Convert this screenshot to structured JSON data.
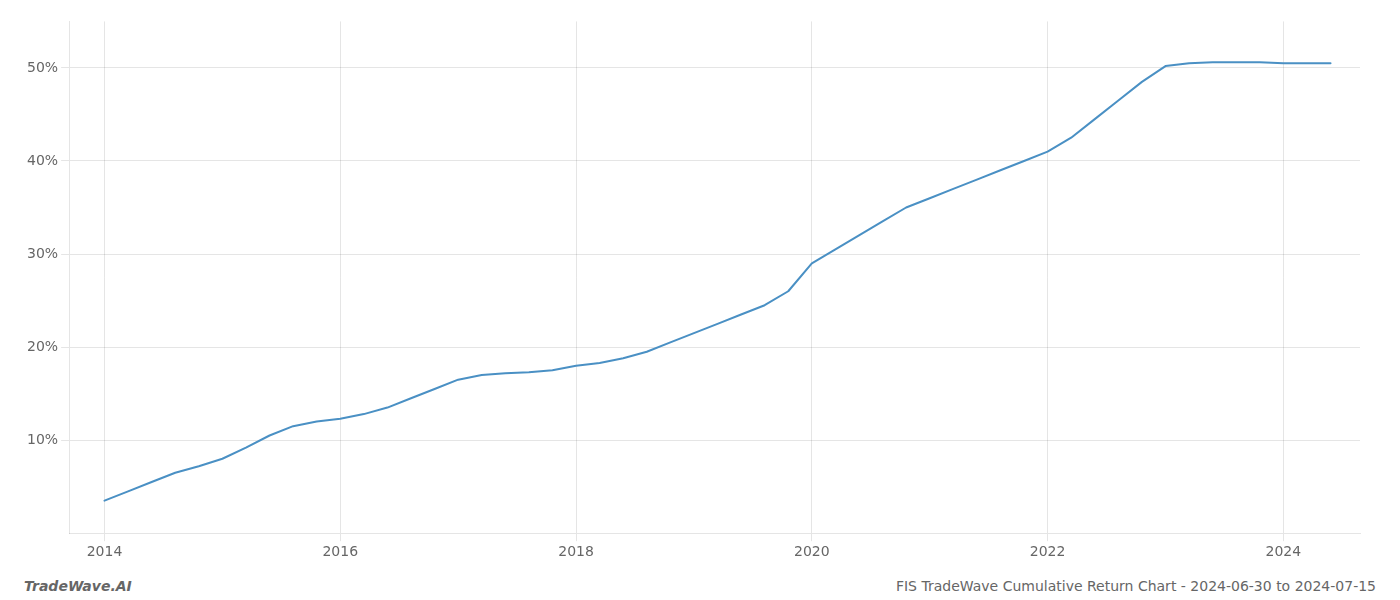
{
  "chart_data": {
    "type": "line",
    "annotations": [
      "TradeWave.AI",
      "FIS TradeWave Cumulative Return Chart - 2024-06-30 to 2024-07-15"
    ],
    "x": [
      2014.0,
      2014.2,
      2014.4,
      2014.6,
      2014.8,
      2015.0,
      2015.2,
      2015.4,
      2015.6,
      2015.8,
      2016.0,
      2016.2,
      2016.4,
      2016.6,
      2016.8,
      2017.0,
      2017.2,
      2017.4,
      2017.6,
      2017.8,
      2018.0,
      2018.2,
      2018.4,
      2018.6,
      2018.8,
      2019.0,
      2019.2,
      2019.4,
      2019.6,
      2019.8,
      2020.0,
      2020.2,
      2020.4,
      2020.6,
      2020.8,
      2021.0,
      2021.2,
      2021.4,
      2021.6,
      2021.8,
      2022.0,
      2022.2,
      2022.4,
      2022.6,
      2022.8,
      2023.0,
      2023.2,
      2023.4,
      2023.6,
      2023.8,
      2024.0,
      2024.4
    ],
    "values": [
      3.5,
      4.5,
      5.5,
      6.5,
      7.2,
      8.0,
      9.2,
      10.5,
      11.5,
      12.0,
      12.3,
      12.8,
      13.5,
      14.5,
      15.5,
      16.5,
      17.0,
      17.2,
      17.3,
      17.5,
      18.0,
      18.3,
      18.8,
      19.5,
      20.5,
      21.5,
      22.5,
      23.5,
      24.5,
      26.0,
      29.0,
      30.5,
      32.0,
      33.5,
      35.0,
      36.0,
      37.0,
      38.0,
      39.0,
      40.0,
      41.0,
      42.5,
      44.5,
      46.5,
      48.5,
      50.2,
      50.5,
      50.6,
      50.6,
      50.6,
      50.5,
      50.5
    ],
    "color": "#4a90c4",
    "xlim": [
      2013.7,
      2024.65
    ],
    "ylim": [
      0,
      55
    ],
    "xticks": [
      2014,
      2016,
      2018,
      2020,
      2022,
      2024
    ],
    "yticks": [
      {
        "value": 10,
        "label": "10%"
      },
      {
        "value": 20,
        "label": "20%"
      },
      {
        "value": 30,
        "label": "30%"
      },
      {
        "value": 40,
        "label": "40%"
      },
      {
        "value": 50,
        "label": "50%"
      }
    ],
    "grid": true
  }
}
